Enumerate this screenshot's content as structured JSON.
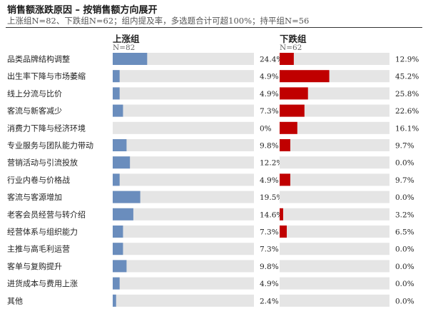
{
  "title": "销售额涨跌原因 – 按销售额方向展开",
  "subtitle": "上涨组N=82、下跌组N=62；组内提及率，多选题合计可超100%；持平组N=56",
  "colors": {
    "up": "#6a8dbd",
    "down": "#c00000",
    "track": "#e5e5e5"
  },
  "chart_data": {
    "type": "bar",
    "orientation": "horizontal",
    "unit": "%",
    "xlim": [
      0,
      100
    ],
    "categories": [
      "品类品牌结构调整",
      "出生率下降与市场萎缩",
      "线上分流与比价",
      "客流与新客减少",
      "消费力下降与经济环境",
      "专业服务与团队能力带动",
      "营销活动与引流投放",
      "行业内卷与价格战",
      "客流与客源增加",
      "老客会员经营与转介绍",
      "经营体系与组织能力",
      "主推与高毛利运营",
      "客单与复购提升",
      "进货成本与费用上涨",
      "其他"
    ],
    "series": [
      {
        "name": "上涨组",
        "n_label": "N=82",
        "values": [
          24.4,
          4.9,
          4.9,
          7.3,
          0,
          9.8,
          12.2,
          4.9,
          19.5,
          14.6,
          7.3,
          7.3,
          9.8,
          4.9,
          2.4
        ],
        "labels": [
          "24.4%",
          "4.9%",
          "4.9%",
          "7.3%",
          "0%",
          "9.8%",
          "12.2%",
          "4.9%",
          "19.5%",
          "14.6%",
          "7.3%",
          "7.3%",
          "9.8%",
          "4.9%",
          "2.4%"
        ]
      },
      {
        "name": "下跌组",
        "n_label": "N=62",
        "values": [
          12.9,
          45.2,
          25.8,
          22.6,
          16.1,
          9.7,
          0.0,
          9.7,
          0.0,
          3.2,
          6.5,
          0.0,
          0.0,
          0.0,
          0.0
        ],
        "labels": [
          "12.9%",
          "45.2%",
          "25.8%",
          "22.6%",
          "16.1%",
          "9.7%",
          "0.0%",
          "9.7%",
          "0.0%",
          "3.2%",
          "6.5%",
          "0.0%",
          "0.0%",
          "0.0%",
          "0.0%"
        ]
      }
    ]
  }
}
